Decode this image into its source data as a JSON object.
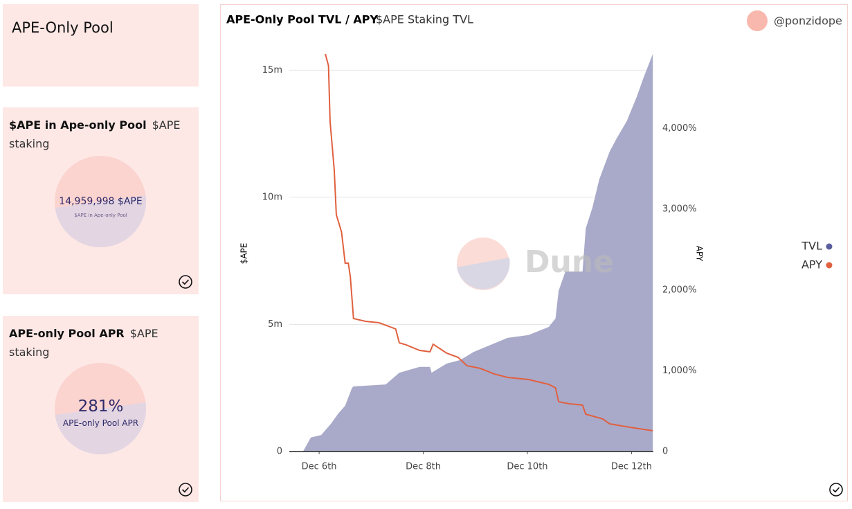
{
  "page_title": "APE-Only Pool",
  "counters": [
    {
      "title": "$APE in Ape-only Pool",
      "subtitle": "$APE staking",
      "value": "14,959,998 $APE",
      "label": "$APE in Ape-only Pool"
    },
    {
      "title": "APE-only Pool APR",
      "subtitle": "$APE staking",
      "value": "281%",
      "label": "APE-only Pool APR"
    }
  ],
  "chart_data": {
    "type": "area_line",
    "title": "APE-Only Pool TVL / APY",
    "subtitle": "$APE Staking TVL",
    "author": "@ponzidope",
    "watermark": "Dune",
    "y_label": "$APE",
    "y2_label": "APY",
    "xlim": [
      5.56,
      12.42
    ],
    "xticks": [
      {
        "value": 6,
        "label": "Dec 6th"
      },
      {
        "value": 8,
        "label": "Dec 8th"
      },
      {
        "value": 10,
        "label": "Dec 10th"
      },
      {
        "value": 12,
        "label": "Dec 12th"
      }
    ],
    "ylim": [
      0,
      15800000
    ],
    "yticks": [
      0,
      {
        "value": 5000000,
        "label": "5m"
      },
      {
        "value": 10000000,
        "label": "10m"
      },
      {
        "value": 15000000,
        "label": "15m"
      }
    ],
    "y2lim": [
      0,
      4974
    ],
    "y2ticks": [
      0,
      {
        "value": 1000,
        "label": "1,000%"
      },
      {
        "value": 2000,
        "label": "2,000%"
      },
      {
        "value": 3000,
        "label": "3,000%"
      },
      {
        "value": 4000,
        "label": "4,000%"
      }
    ],
    "grid": true,
    "legend": "right",
    "series": [
      {
        "name": "TVL",
        "color": "#a9aac9",
        "legend_color": "#5b5e9c",
        "x": [
          5.69,
          5.84,
          6.04,
          6.23,
          6.37,
          6.5,
          6.63,
          6.66,
          7.28,
          7.54,
          7.93,
          8.13,
          8.16,
          8.45,
          8.71,
          8.97,
          9.23,
          9.62,
          10.02,
          10.41,
          10.54,
          10.6,
          10.73,
          11.06,
          11.12,
          11.25,
          11.38,
          11.58,
          11.71,
          11.91,
          12.1,
          12.23,
          12.41
        ],
        "values": [
          0,
          550000,
          650000,
          1100000,
          1500000,
          1800000,
          2500000,
          2560000,
          2640000,
          3100000,
          3330000,
          3330000,
          3100000,
          3460000,
          3600000,
          3920000,
          4140000,
          4470000,
          4580000,
          4900000,
          5230000,
          6320000,
          7080000,
          7080000,
          8770000,
          9600000,
          10700000,
          11800000,
          12300000,
          13000000,
          13950000,
          14700000,
          15640000
        ]
      },
      {
        "name": "APY",
        "color": "#e0603f",
        "axis": "y2",
        "x": [
          6.12,
          6.18,
          6.21,
          6.29,
          6.33,
          6.43,
          6.5,
          6.56,
          6.6,
          6.66,
          6.89,
          7.15,
          7.47,
          7.54,
          7.67,
          7.93,
          8.13,
          8.19,
          8.29,
          8.45,
          8.67,
          8.84,
          9.1,
          9.36,
          9.62,
          10.02,
          10.41,
          10.54,
          10.6,
          10.8,
          11.06,
          11.12,
          11.45,
          11.58,
          11.97,
          12.41
        ],
        "values": [
          4923,
          4777,
          4091,
          3490,
          2933,
          2719,
          2333,
          2333,
          2161,
          1647,
          1612,
          1595,
          1518,
          1346,
          1321,
          1252,
          1235,
          1329,
          1286,
          1218,
          1166,
          1063,
          1029,
          961,
          918,
          892,
          832,
          789,
          617,
          592,
          575,
          463,
          403,
          343,
          300,
          257
        ]
      }
    ]
  }
}
